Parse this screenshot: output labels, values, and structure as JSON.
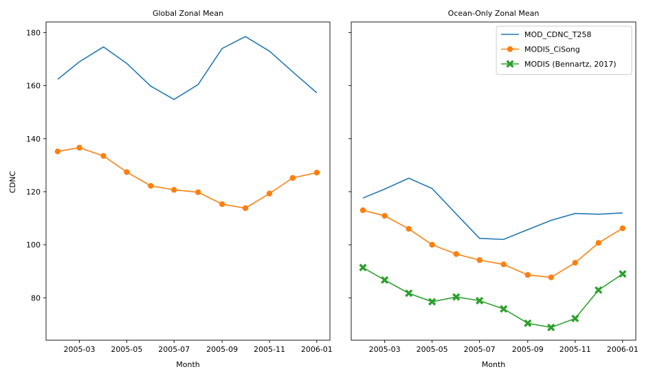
{
  "figure": {
    "shared_ylabel": "CDNC"
  },
  "chart_data": [
    {
      "type": "line",
      "title": "Global Zonal Mean",
      "xlabel": "Month",
      "ylabel": "CDNC",
      "xlim": [
        "2005-01-17",
        "2006-01-18"
      ],
      "ylim": [
        64,
        184
      ],
      "x_ticks": [
        "2005-03",
        "2005-05",
        "2005-07",
        "2005-09",
        "2005-11",
        "2006-01"
      ],
      "y_ticks": [
        80,
        100,
        120,
        140,
        160,
        180
      ],
      "grid": false,
      "legend": null,
      "x": [
        "2005-02-01",
        "2005-03-01",
        "2005-04-01",
        "2005-05-01",
        "2005-06-01",
        "2005-07-01",
        "2005-08-01",
        "2005-09-01",
        "2005-10-01",
        "2005-11-01",
        "2005-12-01",
        "2006-01-01"
      ],
      "series": [
        {
          "name": "MOD_CDNC_T258",
          "color": "#1f77b4",
          "marker": "none",
          "values": [
            162.4,
            169.0,
            174.6,
            168.4,
            159.8,
            154.8,
            160.4,
            174.0,
            178.5,
            173.0,
            165.2,
            157.3
          ]
        },
        {
          "name": "MODIS_CiSong",
          "color": "#ff7f0e",
          "marker": "circle",
          "values": [
            135.2,
            136.6,
            133.5,
            127.4,
            122.2,
            120.7,
            119.8,
            115.3,
            113.8,
            119.3,
            125.2,
            127.2
          ]
        }
      ]
    },
    {
      "type": "line",
      "title": "Ocean-Only Zonal Mean",
      "xlabel": "Month",
      "ylabel": "",
      "xlim": [
        "2005-01-17",
        "2006-01-18"
      ],
      "ylim": [
        64,
        184
      ],
      "x_ticks": [
        "2005-03",
        "2005-05",
        "2005-07",
        "2005-09",
        "2005-11",
        "2006-01"
      ],
      "y_ticks": [
        80,
        100,
        120,
        140,
        160,
        180
      ],
      "show_y_tick_labels": false,
      "grid": false,
      "legend": "top-right",
      "x": [
        "2005-02-01",
        "2005-03-01",
        "2005-04-01",
        "2005-05-01",
        "2005-06-01",
        "2005-07-01",
        "2005-08-01",
        "2005-09-01",
        "2005-10-01",
        "2005-11-01",
        "2005-12-01",
        "2006-01-01"
      ],
      "series": [
        {
          "name": "MOD_CDNC_T258",
          "color": "#1f77b4",
          "marker": "none",
          "values": [
            117.6,
            121.0,
            125.1,
            121.2,
            111.6,
            102.4,
            102.0,
            105.7,
            109.2,
            111.8,
            111.5,
            112.0
          ]
        },
        {
          "name": "MODIS_CiSong",
          "color": "#ff7f0e",
          "marker": "circle",
          "values": [
            113.0,
            110.9,
            106.0,
            100.0,
            96.5,
            94.2,
            92.6,
            88.6,
            87.7,
            93.2,
            100.7,
            106.2
          ]
        },
        {
          "name": "MODIS (Bennartz, 2017)",
          "color": "#2ca02c",
          "marker": "x-filled",
          "values": [
            91.4,
            86.7,
            81.7,
            78.5,
            80.3,
            78.9,
            75.8,
            70.4,
            68.8,
            72.2,
            82.9,
            89.0
          ]
        }
      ]
    }
  ]
}
